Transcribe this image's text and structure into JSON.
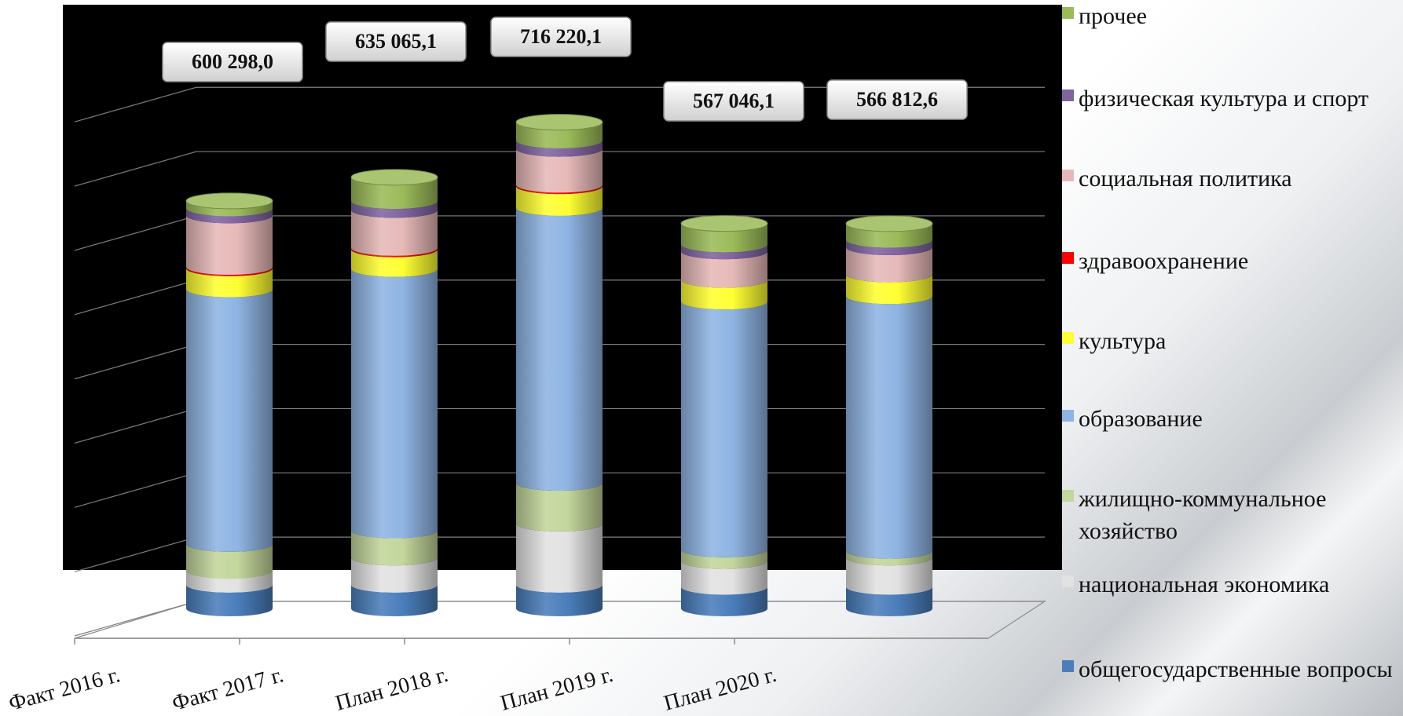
{
  "chart_data": {
    "type": "bar",
    "stacked": true,
    "style": "3d-cylinder",
    "categories": [
      "Факт 2016 г.",
      "Факт 2017 г.",
      "План 2018 г.",
      "План 2019 г.",
      "План 2020 г."
    ],
    "totals_labels": [
      "600 298,0",
      "635 065,1",
      "716 220,1",
      "567 046,1",
      "566 812,6"
    ],
    "totals": [
      600298.0,
      635065.1,
      716220.1,
      567046.1,
      566812.6
    ],
    "ylim": [
      0,
      850000
    ],
    "grid": true,
    "legend_position": "right",
    "series": [
      {
        "name": "общегосударственные вопросы",
        "color": "#4a7ebb",
        "values": [
          35000,
          35000,
          35000,
          32000,
          32000
        ]
      },
      {
        "name": "национальная экономика",
        "color": "#e2e2e2",
        "values": [
          20000,
          40000,
          90000,
          38000,
          43000
        ]
      },
      {
        "name": "жилищно-коммунальное хозяйство",
        "color": "#c3d69b",
        "values": [
          40000,
          40000,
          60000,
          17000,
          10000
        ]
      },
      {
        "name": "образование",
        "color": "#8fb4e3",
        "values": [
          375000,
          385000,
          405000,
          365000,
          375000
        ]
      },
      {
        "name": "культура",
        "color": "#ffff33",
        "values": [
          31000,
          29000,
          32000,
          32000,
          32000
        ]
      },
      {
        "name": "здравоохранение",
        "color": "#ff0000",
        "values": [
          2000,
          2000,
          2000,
          0,
          0
        ]
      },
      {
        "name": "социальная политика",
        "color": "#e6b9b8",
        "values": [
          76000,
          56000,
          53000,
          42000,
          40000
        ]
      },
      {
        "name": "физическая культура и спорт",
        "color": "#8064a2",
        "values": [
          10298,
          13065.1,
          12220.1,
          10046.1,
          10812.6
        ]
      },
      {
        "name": "прочее",
        "color": "#9bbb59",
        "values": [
          11000,
          35000,
          27000,
          31000,
          24000
        ]
      }
    ]
  }
}
